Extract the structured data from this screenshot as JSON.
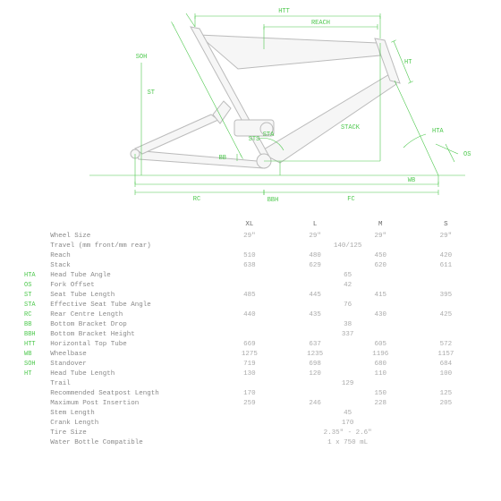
{
  "diagram": {
    "frame_stroke": "#bbbbbb",
    "frame_fill": "#f6f6f6",
    "dim_stroke": "#4ec84e",
    "dim_text": "#4ec84e",
    "labels": {
      "htt": "HTT",
      "reach": "REACH",
      "ht": "HT",
      "hta": "HTA",
      "os": "OS",
      "stack": "STACK",
      "wb": "WB",
      "fc": "FC",
      "rc": "RC",
      "bbh": "BBH",
      "bb": "BB",
      "st": "ST",
      "sta": "STA",
      "soh": "SOH",
      "sts": "STS"
    }
  },
  "table": {
    "sizes": [
      "XL",
      "L",
      "M",
      "S"
    ],
    "rows": [
      {
        "abbr": "",
        "label": "Wheel Size",
        "v": [
          "29\"",
          "29\"",
          "29\"",
          "29\""
        ]
      },
      {
        "abbr": "",
        "label": "Travel (mm front/mm rear)",
        "span": "140/125"
      },
      {
        "abbr": "",
        "label": "Reach",
        "v": [
          "510",
          "480",
          "450",
          "420"
        ]
      },
      {
        "abbr": "",
        "label": "Stack",
        "v": [
          "638",
          "629",
          "620",
          "611"
        ]
      },
      {
        "abbr": "HTA",
        "label": "Head Tube Angle",
        "span": "65"
      },
      {
        "abbr": "OS",
        "label": "Fork Offset",
        "span": "42"
      },
      {
        "abbr": "ST",
        "label": "Seat Tube Length",
        "v": [
          "485",
          "445",
          "415",
          "395"
        ]
      },
      {
        "abbr": "STA",
        "label": "Effective Seat Tube Angle",
        "span": "76"
      },
      {
        "abbr": "RC",
        "label": "Rear Centre Length",
        "v": [
          "440",
          "435",
          "430",
          "425"
        ]
      },
      {
        "abbr": "BB",
        "label": "Bottom Bracket Drop",
        "span": "38"
      },
      {
        "abbr": "BBH",
        "label": "Bottom Bracket Height",
        "span": "337"
      },
      {
        "abbr": "HTT",
        "label": "Horizontal Top Tube",
        "v": [
          "669",
          "637",
          "605",
          "572"
        ]
      },
      {
        "abbr": "WB",
        "label": "Wheelbase",
        "v": [
          "1275",
          "1235",
          "1196",
          "1157"
        ]
      },
      {
        "abbr": "SOH",
        "label": "Standover",
        "v": [
          "719",
          "698",
          "680",
          "684"
        ]
      },
      {
        "abbr": "HT",
        "label": "Head Tube Length",
        "v": [
          "130",
          "120",
          "110",
          "100"
        ]
      },
      {
        "abbr": "",
        "label": "Trail",
        "span": "129"
      },
      {
        "abbr": "",
        "label": "Recommended Seatpost Length",
        "v": [
          "170",
          "",
          "150",
          "125"
        ]
      },
      {
        "abbr": "",
        "label": "Maximum Post Insertion",
        "v": [
          "259",
          "246",
          "228",
          "205"
        ]
      },
      {
        "abbr": "",
        "label": "Stem Length",
        "span": "45"
      },
      {
        "abbr": "",
        "label": "Crank Length",
        "span": "170"
      },
      {
        "abbr": "",
        "label": "Tire Size",
        "span": "2.35\" - 2.6\""
      },
      {
        "abbr": "",
        "label": "Water Bottle Compatible",
        "span": "1 x 750 mL"
      }
    ]
  }
}
